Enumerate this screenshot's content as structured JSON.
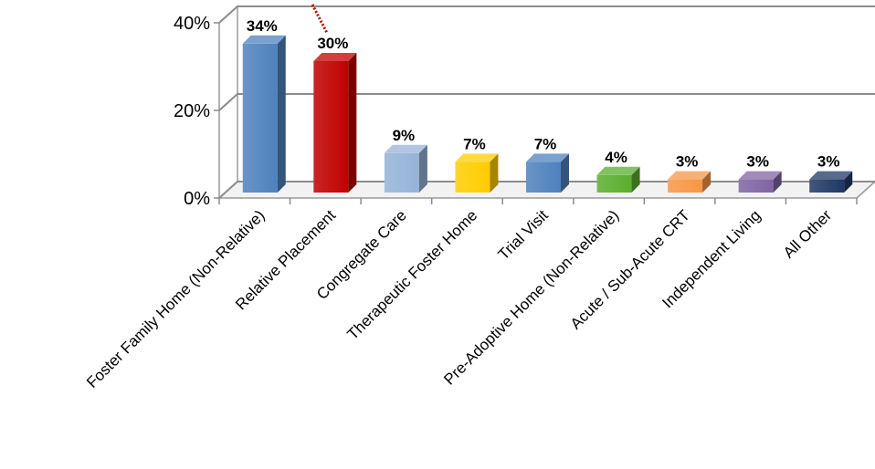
{
  "chart_data": {
    "type": "bar",
    "categories": [
      "Foster Family Home (Non-Relative)",
      "Relative Placement",
      "Congregate Care",
      "Therapeutic Foster Home",
      "Trial  Visit",
      "Pre-Adoptive Home (Non-Relative)",
      "Acute / Sub-Acute CRT",
      "Independent Living",
      "All Other"
    ],
    "values": [
      34,
      30,
      9,
      7,
      7,
      4,
      3,
      3,
      3
    ],
    "data_labels": [
      "34%",
      "30%",
      "9%",
      "7%",
      "7%",
      "4%",
      "3%",
      "3%",
      "3%"
    ],
    "colors": [
      "#4f81bd",
      "#c00000",
      "#95b3d7",
      "#ffcc00",
      "#4f81bd",
      "#5aae2e",
      "#f79646",
      "#8064a2",
      "#1f3864"
    ],
    "yticks": [
      0,
      20,
      40
    ],
    "ytick_labels": [
      "0%",
      "20%",
      "40%"
    ],
    "ylim": [
      0,
      40
    ],
    "grid": true,
    "legend": "none",
    "style": "3d-column"
  }
}
